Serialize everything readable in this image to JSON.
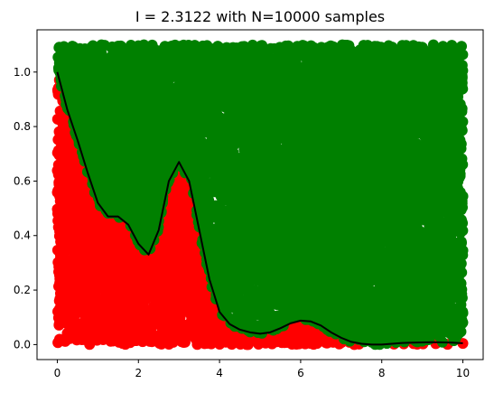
{
  "chart_data": {
    "type": "scatter",
    "title": "I =  2.3122 with N=10000 samples",
    "xlabel": "",
    "ylabel": "",
    "xlim": [
      -0.5,
      10.5
    ],
    "ylim": [
      -0.055,
      1.155
    ],
    "xticks": [
      0,
      2,
      4,
      6,
      8,
      10
    ],
    "yticks": [
      0.0,
      0.2,
      0.4,
      0.6,
      0.8,
      1.0
    ],
    "xtick_labels": [
      "0",
      "2",
      "4",
      "6",
      "8",
      "10"
    ],
    "ytick_labels": [
      "0.0",
      "0.2",
      "0.4",
      "0.6",
      "0.8",
      "1.0"
    ],
    "grid": false,
    "samples": {
      "count": 10000,
      "x_range": [
        0,
        10
      ],
      "y_range": [
        0,
        1.1
      ],
      "below_curve_color": "#ff0000",
      "above_curve_color": "#008000"
    },
    "curve": {
      "type": "line",
      "color": "#000000",
      "x": [
        0,
        0.25,
        0.5,
        0.75,
        1.0,
        1.25,
        1.5,
        1.75,
        2.0,
        2.25,
        2.5,
        2.75,
        3.0,
        3.25,
        3.5,
        3.75,
        4.0,
        4.25,
        4.5,
        4.75,
        5.0,
        5.25,
        5.5,
        5.75,
        6.0,
        6.25,
        6.5,
        6.75,
        7.0,
        7.25,
        7.5,
        7.75,
        8.0,
        8.25,
        8.5,
        8.75,
        9.0,
        9.25,
        9.5,
        9.75,
        10.0
      ],
      "y": [
        1.0,
        0.86,
        0.75,
        0.63,
        0.52,
        0.47,
        0.47,
        0.44,
        0.37,
        0.33,
        0.42,
        0.6,
        0.67,
        0.6,
        0.42,
        0.24,
        0.12,
        0.075,
        0.055,
        0.045,
        0.04,
        0.045,
        0.06,
        0.078,
        0.088,
        0.085,
        0.07,
        0.045,
        0.025,
        0.01,
        0.003,
        0.0,
        0.0,
        0.003,
        0.006,
        0.007,
        0.008,
        0.009,
        0.008,
        0.007,
        0.005
      ]
    }
  }
}
